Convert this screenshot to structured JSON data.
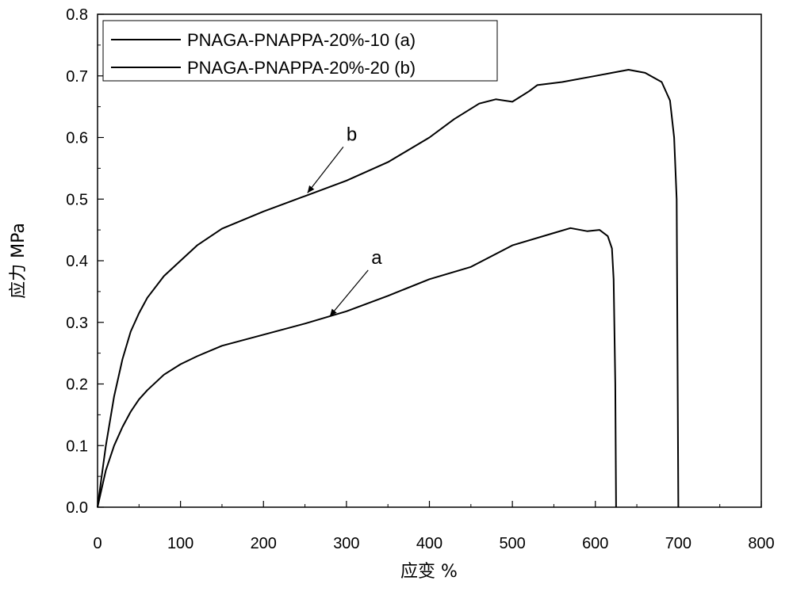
{
  "chart_data": {
    "type": "line",
    "title": "",
    "xlabel": "应变 %",
    "ylabel": "应力 MPa",
    "xlim": [
      0,
      800
    ],
    "ylim": [
      0,
      0.8
    ],
    "xticks": [
      0,
      100,
      200,
      300,
      400,
      500,
      600,
      700,
      800
    ],
    "yticks": [
      0.0,
      0.1,
      0.2,
      0.3,
      0.4,
      0.5,
      0.6,
      0.7,
      0.8
    ],
    "xtick_labels": [
      "0",
      "100",
      "200",
      "300",
      "400",
      "500",
      "600",
      "700",
      "800"
    ],
    "ytick_labels": [
      "0.0",
      "0.1",
      "0.2",
      "0.3",
      "0.4",
      "0.5",
      "0.6",
      "0.7",
      "0.8"
    ],
    "grid": false,
    "legend_position": "top-left",
    "series": [
      {
        "name": "PNAGA-PNAPPA-20%-10 (a)",
        "color": "#000000",
        "x": [
          0,
          5,
          10,
          20,
          30,
          40,
          50,
          60,
          80,
          100,
          120,
          150,
          200,
          250,
          300,
          350,
          400,
          450,
          500,
          550,
          570,
          590,
          605,
          615,
          620,
          622,
          624,
          625
        ],
        "y": [
          0,
          0.03,
          0.06,
          0.1,
          0.13,
          0.155,
          0.175,
          0.19,
          0.215,
          0.232,
          0.245,
          0.262,
          0.28,
          0.298,
          0.318,
          0.343,
          0.37,
          0.39,
          0.425,
          0.445,
          0.453,
          0.448,
          0.45,
          0.44,
          0.42,
          0.37,
          0.2,
          0
        ]
      },
      {
        "name": "PNAGA-PNAPPA-20%-20 (b)",
        "color": "#000000",
        "x": [
          0,
          5,
          10,
          20,
          30,
          40,
          50,
          60,
          80,
          100,
          120,
          150,
          200,
          250,
          300,
          350,
          400,
          430,
          460,
          480,
          500,
          520,
          530,
          560,
          600,
          620,
          640,
          660,
          680,
          690,
          695,
          698,
          700
        ],
        "y": [
          0,
          0.05,
          0.1,
          0.18,
          0.24,
          0.285,
          0.315,
          0.34,
          0.375,
          0.4,
          0.425,
          0.452,
          0.48,
          0.505,
          0.53,
          0.56,
          0.6,
          0.63,
          0.655,
          0.662,
          0.658,
          0.675,
          0.685,
          0.69,
          0.7,
          0.705,
          0.71,
          0.705,
          0.69,
          0.66,
          0.6,
          0.5,
          0
        ]
      }
    ],
    "annotations": [
      {
        "text": "a",
        "x": 330,
        "y": 0.395,
        "arrow_to_x": 280,
        "arrow_to_y": 0.31
      },
      {
        "text": "b",
        "x": 300,
        "y": 0.595,
        "arrow_to_x": 253,
        "arrow_to_y": 0.51
      }
    ]
  }
}
